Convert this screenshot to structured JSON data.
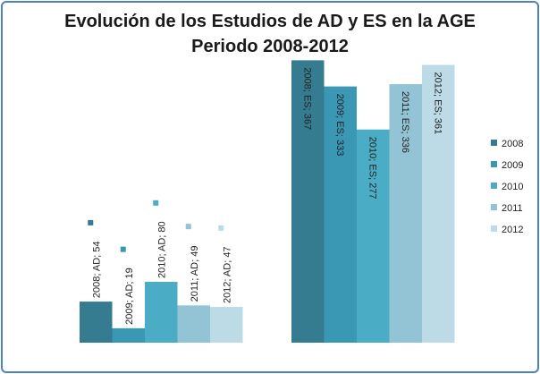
{
  "chart_data": {
    "type": "bar",
    "title_line1": "Evolución de los Estudios de AD y ES en la AGE",
    "title_line2": "Periodo 2008-2012",
    "categories": [
      "AD",
      "ES"
    ],
    "series": [
      {
        "name": "2008",
        "values": [
          54,
          367
        ],
        "color": "#357c91",
        "labels": [
          "2008; AD; 54",
          "2008; ES; 367"
        ]
      },
      {
        "name": "2009",
        "values": [
          19,
          333
        ],
        "color": "#3b98b4",
        "labels": [
          "2009; AD; 19",
          "2009; ES; 333"
        ]
      },
      {
        "name": "2010",
        "values": [
          80,
          277
        ],
        "color": "#4bacc6",
        "labels": [
          "2010; AD; 80",
          "2010; ES; 277"
        ]
      },
      {
        "name": "2011",
        "values": [
          49,
          336
        ],
        "color": "#93c4d5",
        "labels": [
          "2011; AD; 49",
          "2011; ES; 336"
        ]
      },
      {
        "name": "2012",
        "values": [
          47,
          361
        ],
        "color": "#bcdbe6",
        "labels": [
          "2012; AD; 47",
          "2012; ES; 361"
        ]
      }
    ],
    "legend_position": "right",
    "grid": false
  }
}
